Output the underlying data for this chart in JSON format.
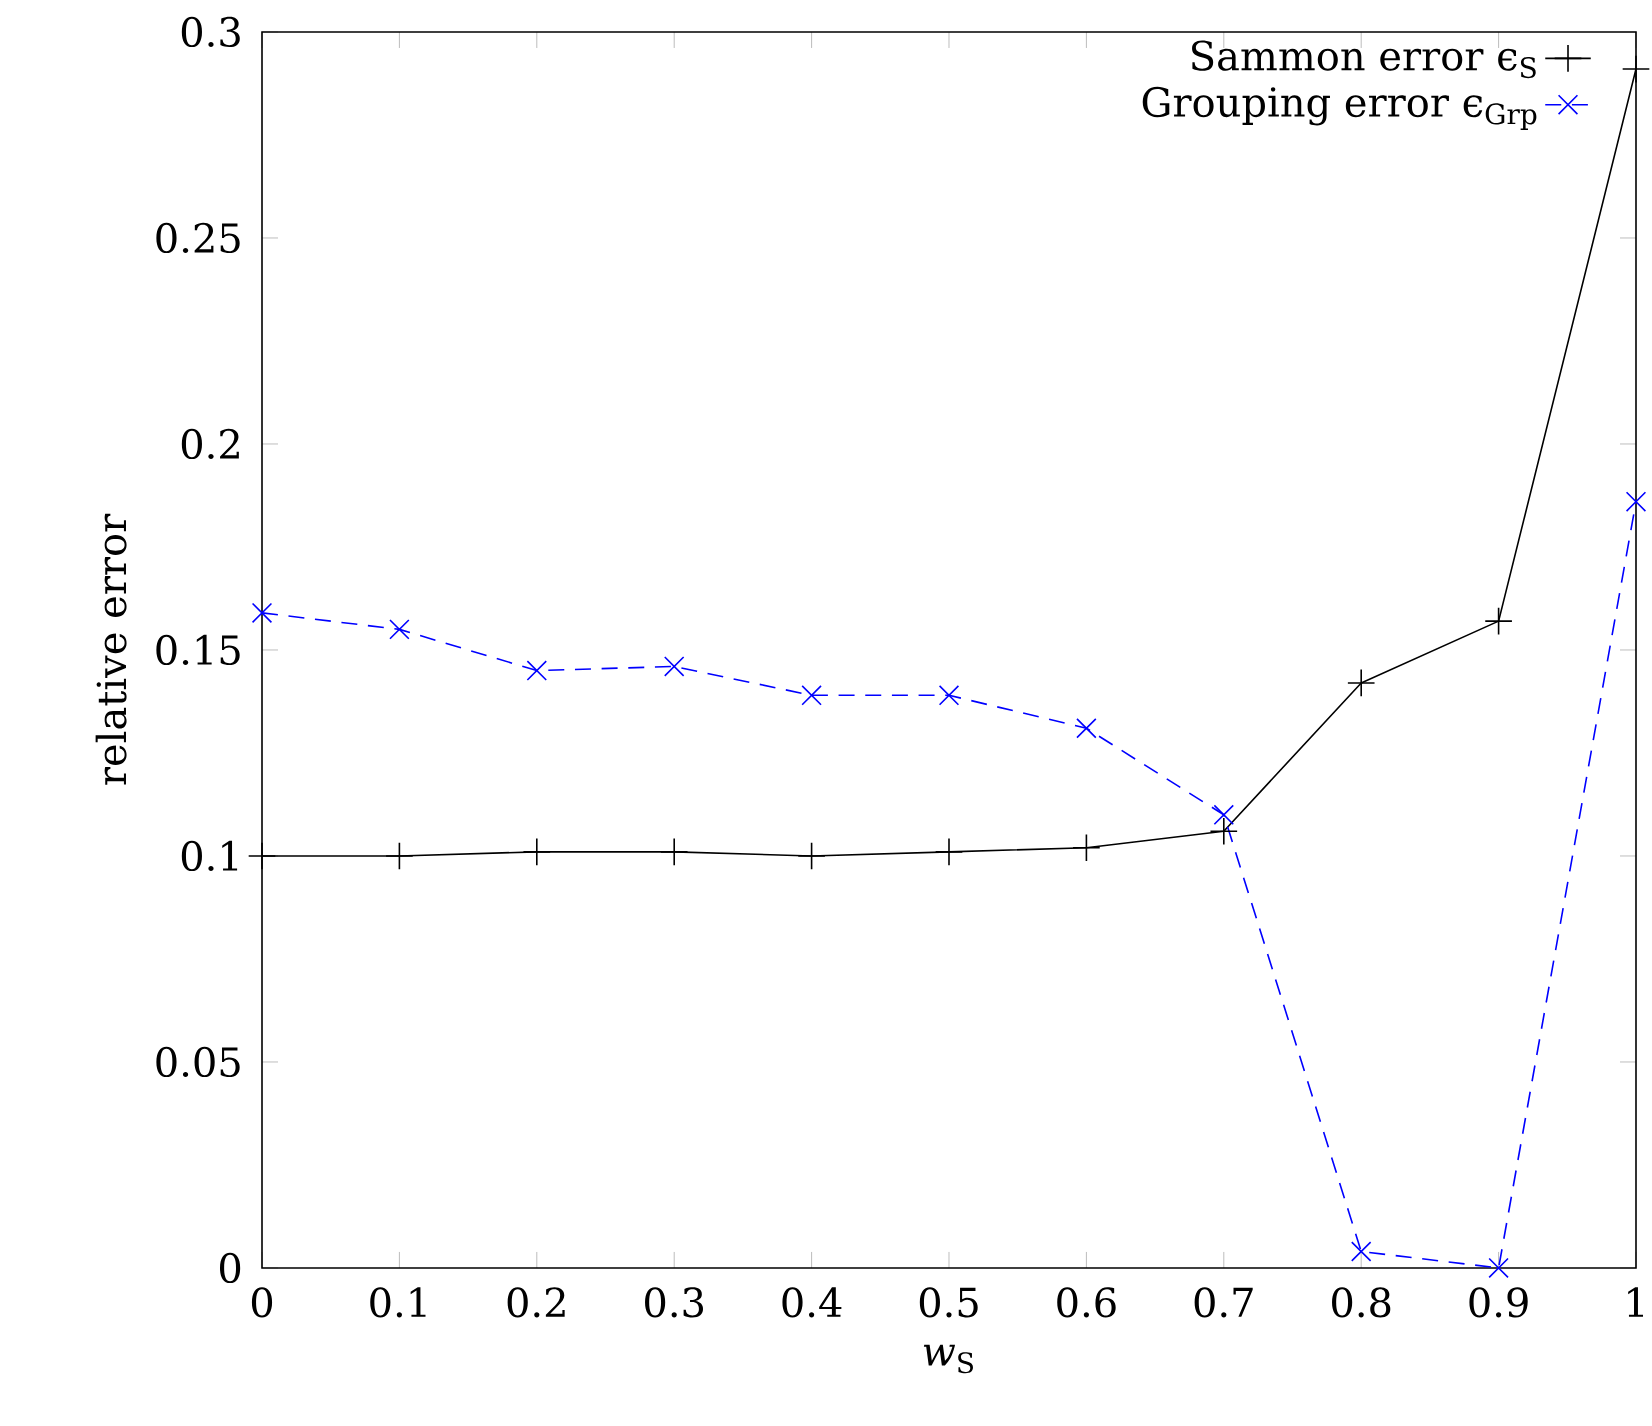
{
  "chart_data": {
    "type": "line",
    "xlabel": "*w*$_{S}$",
    "ylabel": "relative error",
    "x": [
      0,
      0.1,
      0.2,
      0.3,
      0.4,
      0.5,
      0.6,
      0.7,
      0.8,
      0.9,
      1
    ],
    "series": [
      {
        "name": "Sammon error ϵ$_{S}$",
        "color": "#000000",
        "marker": "plus",
        "line_style": "solid",
        "values": [
          0.1,
          0.1,
          0.101,
          0.101,
          0.1,
          0.101,
          0.102,
          0.106,
          0.142,
          0.157,
          0.291
        ]
      },
      {
        "name": "Grouping error ϵ$_{Grp}$",
        "color": "#0000ff",
        "marker": "cross",
        "line_style": "dashed",
        "values": [
          0.159,
          0.155,
          0.145,
          0.146,
          0.139,
          0.139,
          0.131,
          0.11,
          0.004,
          0,
          0.186
        ]
      }
    ],
    "xlim": [
      0,
      1
    ],
    "ylim": [
      0,
      0.3
    ],
    "xticks": [
      0,
      0.1,
      0.2,
      0.3,
      0.4,
      0.5,
      0.6,
      0.7,
      0.8,
      0.9,
      1
    ],
    "yticks": [
      0,
      0.05,
      0.1,
      0.15,
      0.2,
      0.25,
      0.3
    ],
    "grid": false,
    "legend": "top right"
  }
}
